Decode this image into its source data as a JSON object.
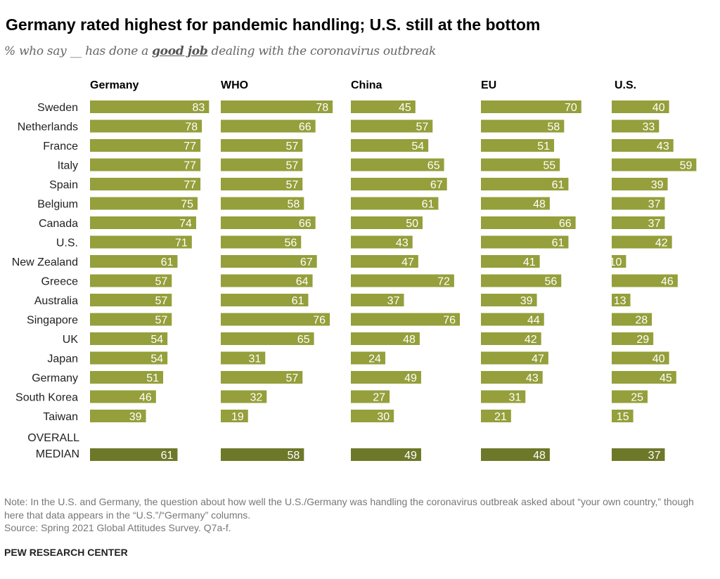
{
  "title": "Germany rated highest for pandemic handling; U.S. still at the bottom",
  "subtitle": {
    "pre": "% who say __ has done a ",
    "emph": "good job",
    "post": " dealing with the coronavirus outbreak"
  },
  "chart_data": {
    "type": "bar",
    "orientation": "horizontal",
    "categories": [
      "Sweden",
      "Netherlands",
      "France",
      "Italy",
      "Spain",
      "Belgium",
      "Canada",
      "U.S.",
      "New Zealand",
      "Greece",
      "Australia",
      "Singapore",
      "UK",
      "Japan",
      "Germany",
      "South Korea",
      "Taiwan"
    ],
    "series": [
      {
        "name": "Germany",
        "values": [
          83,
          78,
          77,
          77,
          77,
          75,
          74,
          71,
          61,
          57,
          57,
          57,
          54,
          54,
          51,
          46,
          39
        ],
        "median": 61
      },
      {
        "name": "WHO",
        "values": [
          78,
          66,
          57,
          57,
          57,
          58,
          66,
          56,
          67,
          64,
          61,
          76,
          65,
          31,
          57,
          32,
          19
        ],
        "median": 58
      },
      {
        "name": "China",
        "values": [
          45,
          57,
          54,
          65,
          67,
          61,
          50,
          43,
          47,
          72,
          37,
          76,
          48,
          24,
          49,
          27,
          30
        ],
        "median": 49
      },
      {
        "name": "EU",
        "values": [
          70,
          58,
          51,
          55,
          61,
          48,
          66,
          61,
          41,
          56,
          39,
          44,
          42,
          47,
          43,
          31,
          21
        ],
        "median": 48
      },
      {
        "name": "U.S.",
        "values": [
          40,
          33,
          43,
          59,
          39,
          37,
          37,
          42,
          10,
          46,
          13,
          28,
          29,
          40,
          45,
          25,
          15
        ],
        "median": 37
      }
    ],
    "median_label": [
      "OVERALL",
      "MEDIAN"
    ],
    "colors": {
      "bar": "#959f3b",
      "median_bar": "#6e7829"
    }
  },
  "note": "Note: In the U.S. and Germany, the question about how well the U.S./Germany was handling the coronavirus outbreak asked about “your own country,” though here that data appears in the “U.S.”/“Germany” columns.",
  "source": "Source: Spring 2021 Global Attitudes Survey. Q7a-f.",
  "brand": "PEW RESEARCH CENTER"
}
